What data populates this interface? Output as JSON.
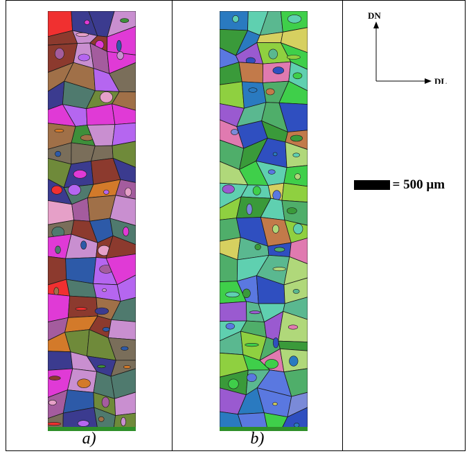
{
  "panels": [
    {
      "label": "a)",
      "palette": [
        "#e03ad6",
        "#b566f0",
        "#8c3a2e",
        "#3e8f3a",
        "#2d5aa8",
        "#d37a2a",
        "#f03030",
        "#7a6e5a",
        "#c98fd0",
        "#4f7a6e",
        "#a45c9e",
        "#3b3b8f",
        "#a07048",
        "#6f8a3a",
        "#e6a0c8"
      ],
      "base_color": "#6e7f52"
    },
    {
      "label": "b)",
      "palette": [
        "#3fcf4a",
        "#5a78e0",
        "#4fae6a",
        "#2f4fc0",
        "#8fd040",
        "#c27a4a",
        "#5fd0b0",
        "#9a5ad0",
        "#e07ab0",
        "#3a9a3a",
        "#7a8ad8",
        "#d6d060",
        "#5ab890",
        "#2a7ac0",
        "#b0d87a"
      ],
      "base_color": "#3ea84e"
    }
  ],
  "axes": {
    "y_label": "DN",
    "x_label": "DL"
  },
  "scale_bar": {
    "text": "= 500 µm"
  }
}
